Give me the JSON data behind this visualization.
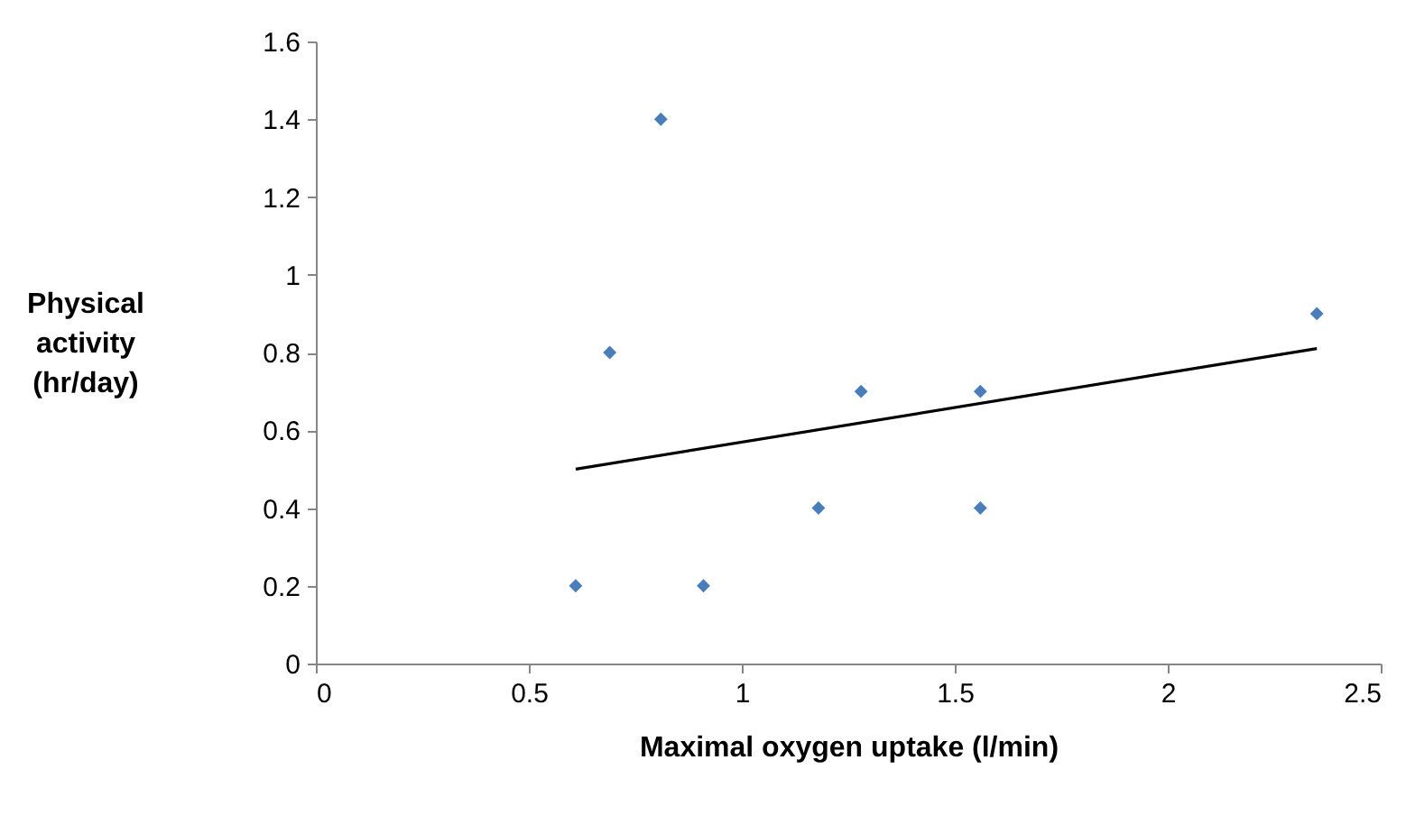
{
  "chart_data": {
    "type": "scatter",
    "xlabel": "Maximal oxygen uptake (l/min)",
    "ylabel": "Physical activity (hr/day)",
    "xlim": [
      0,
      2.5
    ],
    "xticks": [
      0,
      0.5,
      1,
      1.5,
      2,
      2.5
    ],
    "ylim": [
      0,
      1.6
    ],
    "yticks": [
      0,
      0.2,
      0.4,
      0.6,
      0.8,
      1,
      1.2,
      1.4,
      1.6
    ],
    "grid": false,
    "series": [
      {
        "marker": "diamond",
        "color": "#4a7ebb",
        "x": [
          0.61,
          0.69,
          0.81,
          0.91,
          1.18,
          1.28,
          1.56,
          1.56,
          2.35
        ],
        "values": [
          0.2,
          0.8,
          1.4,
          0.2,
          0.4,
          0.7,
          0.7,
          0.4,
          0.9
        ]
      },
      {
        "type": "line",
        "marker": "none",
        "color": "#000000",
        "x": [
          0.61,
          2.35
        ],
        "values": [
          0.5,
          0.81
        ]
      }
    ]
  }
}
